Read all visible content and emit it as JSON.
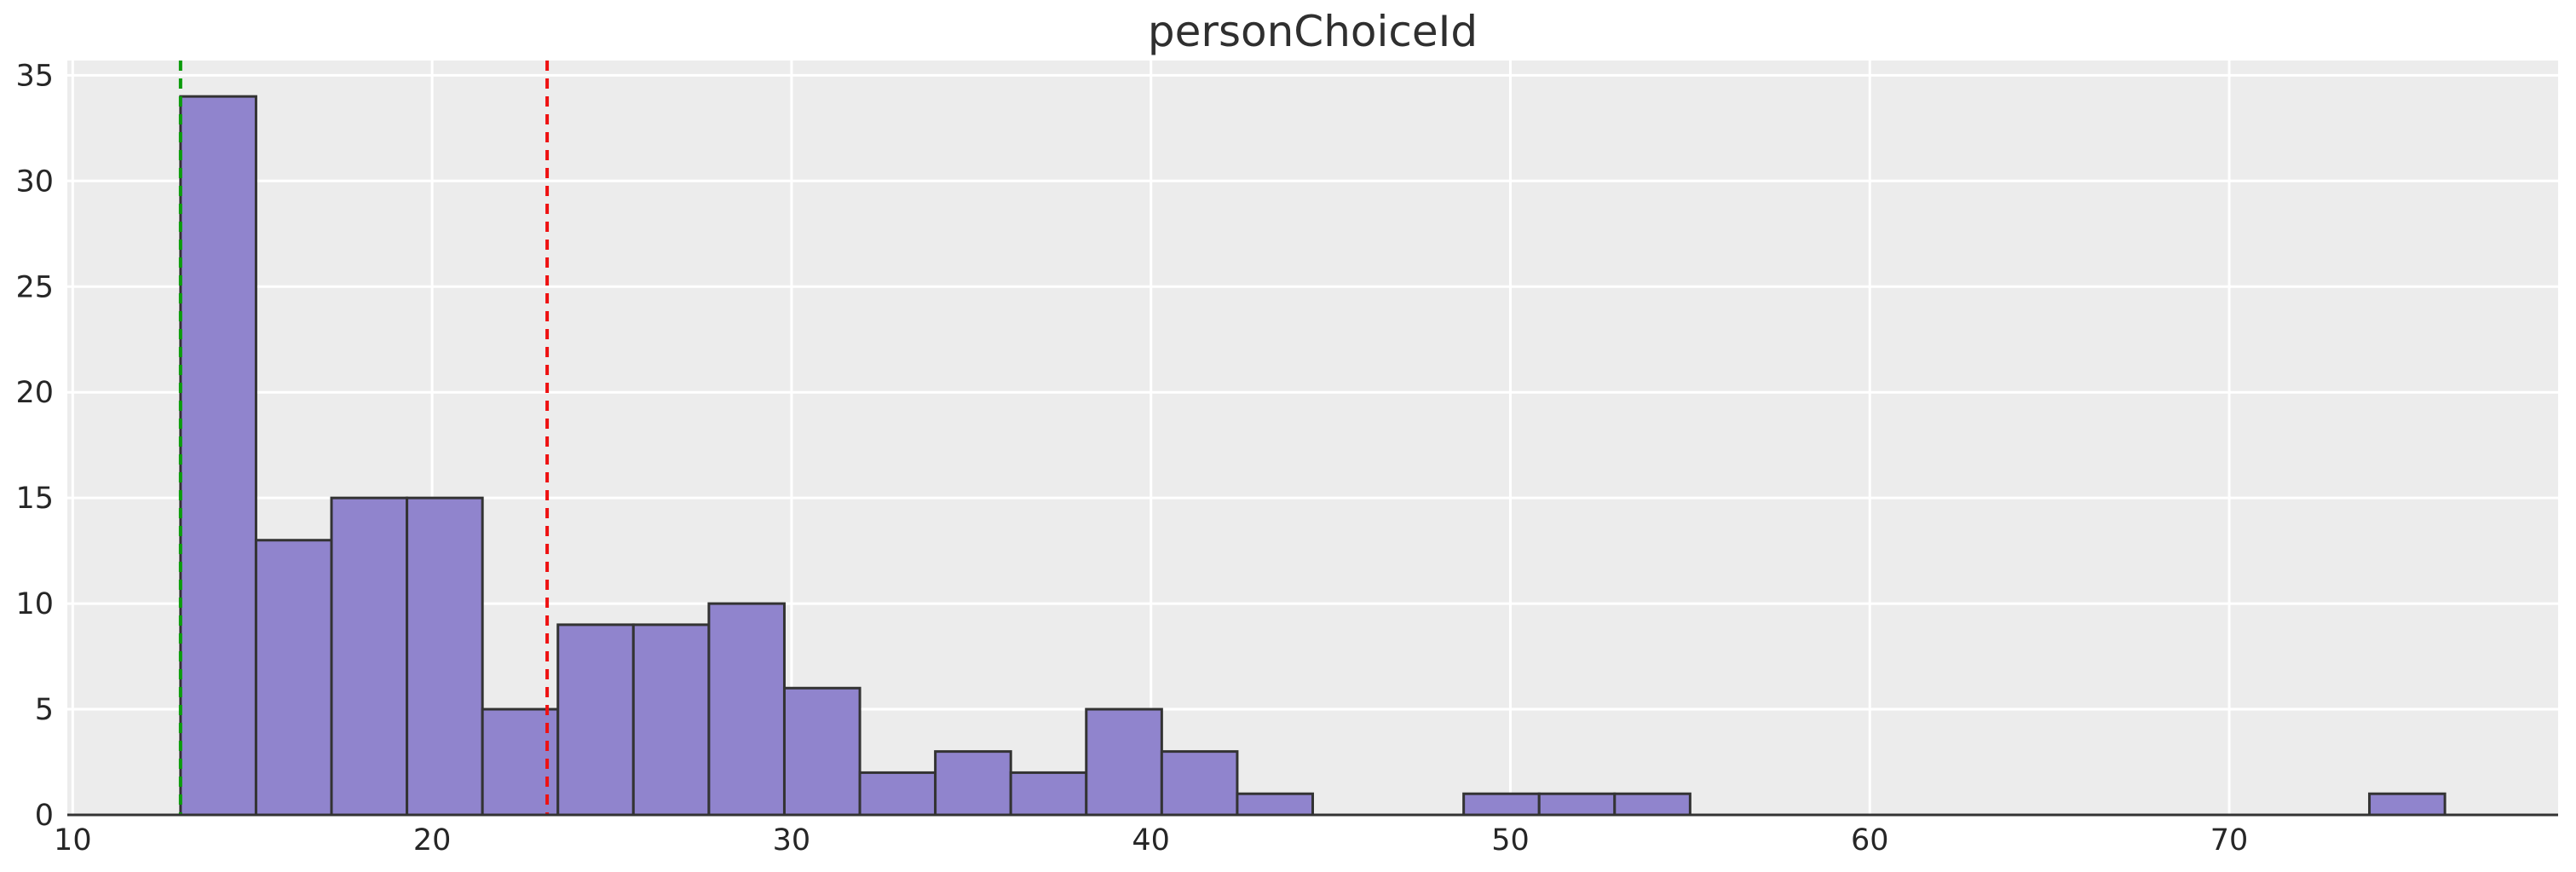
{
  "figure": {
    "title": "personChoiceId"
  },
  "chart_data": {
    "type": "histogram",
    "title": "personChoiceId",
    "xlabel": "",
    "ylabel": "",
    "series_name": "personChoiceId",
    "bins": {
      "start": 13.0,
      "width": 2.1,
      "end": 76.0,
      "n": 30
    },
    "bin_edges": [
      13.0,
      15.1,
      17.2,
      19.3,
      21.4,
      23.5,
      25.6,
      27.7,
      29.8,
      31.9,
      34.0,
      36.1,
      38.2,
      40.3,
      42.4,
      44.5,
      46.6,
      48.7,
      50.8,
      52.9,
      55.0,
      57.1,
      59.2,
      61.3,
      63.4,
      65.5,
      67.6,
      69.7,
      71.8,
      73.9,
      76.0
    ],
    "counts": [
      34,
      13,
      15,
      15,
      5,
      9,
      9,
      10,
      6,
      2,
      3,
      2,
      5,
      3,
      1,
      0,
      0,
      1,
      1,
      1,
      0,
      0,
      0,
      0,
      0,
      0,
      0,
      0,
      0,
      1
    ],
    "total_count": 136,
    "xticks": [
      10,
      20,
      30,
      40,
      50,
      60,
      70
    ],
    "yticks": [
      0,
      5,
      10,
      15,
      20,
      25,
      30,
      35
    ],
    "xlim": [
      9.85,
      79.15
    ],
    "ylim": [
      0,
      35.7
    ],
    "grid": true,
    "legend": false,
    "vlines": [
      {
        "name": "min-line",
        "x": 13.0,
        "color": "#0a9b0a",
        "style": "dashed"
      },
      {
        "name": "mean-line",
        "x": 23.2,
        "color": "#ee1111",
        "style": "dashed"
      }
    ],
    "colors": {
      "figure_bg": "#ffffff",
      "axes_bg": "#ececec",
      "grid": "#ffffff",
      "bar_fill": "#9084cd",
      "bar_edge": "#333333",
      "spine": "#333333",
      "text": "#262626"
    }
  }
}
